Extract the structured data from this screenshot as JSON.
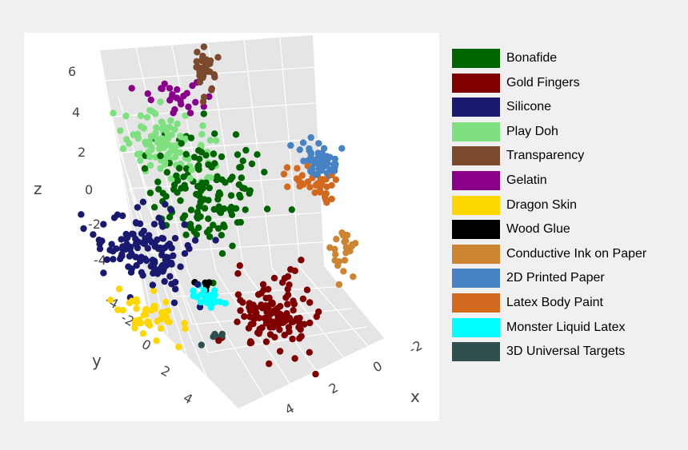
{
  "chart_data": {
    "type": "scatter",
    "projection": "3d",
    "grid": true,
    "legend_position": "right",
    "axes": {
      "x": {
        "label": "x",
        "ticks": [
          "4",
          "2",
          "0",
          "-2"
        ],
        "range": [
          -3,
          5
        ]
      },
      "y": {
        "label": "y",
        "ticks": [
          "-4",
          "-2",
          "0",
          "2",
          "4"
        ],
        "range": [
          -4.5,
          4.5
        ]
      },
      "z": {
        "label": "z",
        "ticks": [
          "6",
          "4",
          "2",
          "0",
          "-2",
          "-4"
        ],
        "range": [
          -5,
          7
        ]
      }
    },
    "series": [
      {
        "name": "Bonafide",
        "color": "#006400",
        "center": [
          0.5,
          -1,
          0.5
        ],
        "spread": [
          1.6,
          1.6,
          2.0
        ],
        "count": 140
      },
      {
        "name": "Gold Fingers",
        "color": "#800000",
        "center": [
          1.2,
          3,
          -3
        ],
        "spread": [
          1.2,
          1.2,
          1.3
        ],
        "count": 120
      },
      {
        "name": "Silicone",
        "color": "#191970",
        "center": [
          3.5,
          -0.5,
          -1
        ],
        "spread": [
          1.2,
          1.6,
          1.2
        ],
        "count": 130
      },
      {
        "name": "Play Doh",
        "color": "#7FE080",
        "center": [
          0.8,
          -2.5,
          1.8
        ],
        "spread": [
          1.3,
          1.5,
          1.0
        ],
        "count": 110
      },
      {
        "name": "Transparency",
        "color": "#7B4A2D",
        "center": [
          -0.5,
          -2,
          5
        ],
        "spread": [
          0.3,
          0.3,
          0.9
        ],
        "count": 35
      },
      {
        "name": "Gelatin",
        "color": "#8B008B",
        "center": [
          -0.5,
          -3.5,
          3.2
        ],
        "spread": [
          0.8,
          0.8,
          0.6
        ],
        "count": 25
      },
      {
        "name": "Dragon Skin",
        "color": "#FFD700",
        "center": [
          4.5,
          0.5,
          -3.2
        ],
        "spread": [
          0.8,
          1.2,
          0.6
        ],
        "count": 45
      },
      {
        "name": "Wood Glue",
        "color": "#000000",
        "center": [
          2.3,
          0.8,
          -2.2
        ],
        "spread": [
          0.3,
          0.3,
          0.3
        ],
        "count": 5
      },
      {
        "name": "Conductive Ink on Paper",
        "color": "#CD8532",
        "center": [
          -1.5,
          3.8,
          -0.5
        ],
        "spread": [
          0.4,
          0.5,
          0.8
        ],
        "count": 25
      },
      {
        "name": "2D Printed Paper",
        "color": "#4682C4",
        "center": [
          -2.5,
          1.5,
          2.2
        ],
        "spread": [
          0.5,
          0.8,
          0.4
        ],
        "count": 60
      },
      {
        "name": "Latex Body Paint",
        "color": "#D2691E",
        "center": [
          -1.8,
          1.8,
          1.5
        ],
        "spread": [
          0.5,
          0.8,
          0.5
        ],
        "count": 35
      },
      {
        "name": "Monster Liquid Latex",
        "color": "#00FFFF",
        "center": [
          2.8,
          1.5,
          -2.2
        ],
        "spread": [
          0.5,
          0.5,
          0.4
        ],
        "count": 22
      },
      {
        "name": "3D Universal Targets",
        "color": "#2F4F4F",
        "center": [
          3.2,
          2.2,
          -3.5
        ],
        "spread": [
          0.3,
          0.3,
          0.3
        ],
        "count": 6
      }
    ]
  }
}
